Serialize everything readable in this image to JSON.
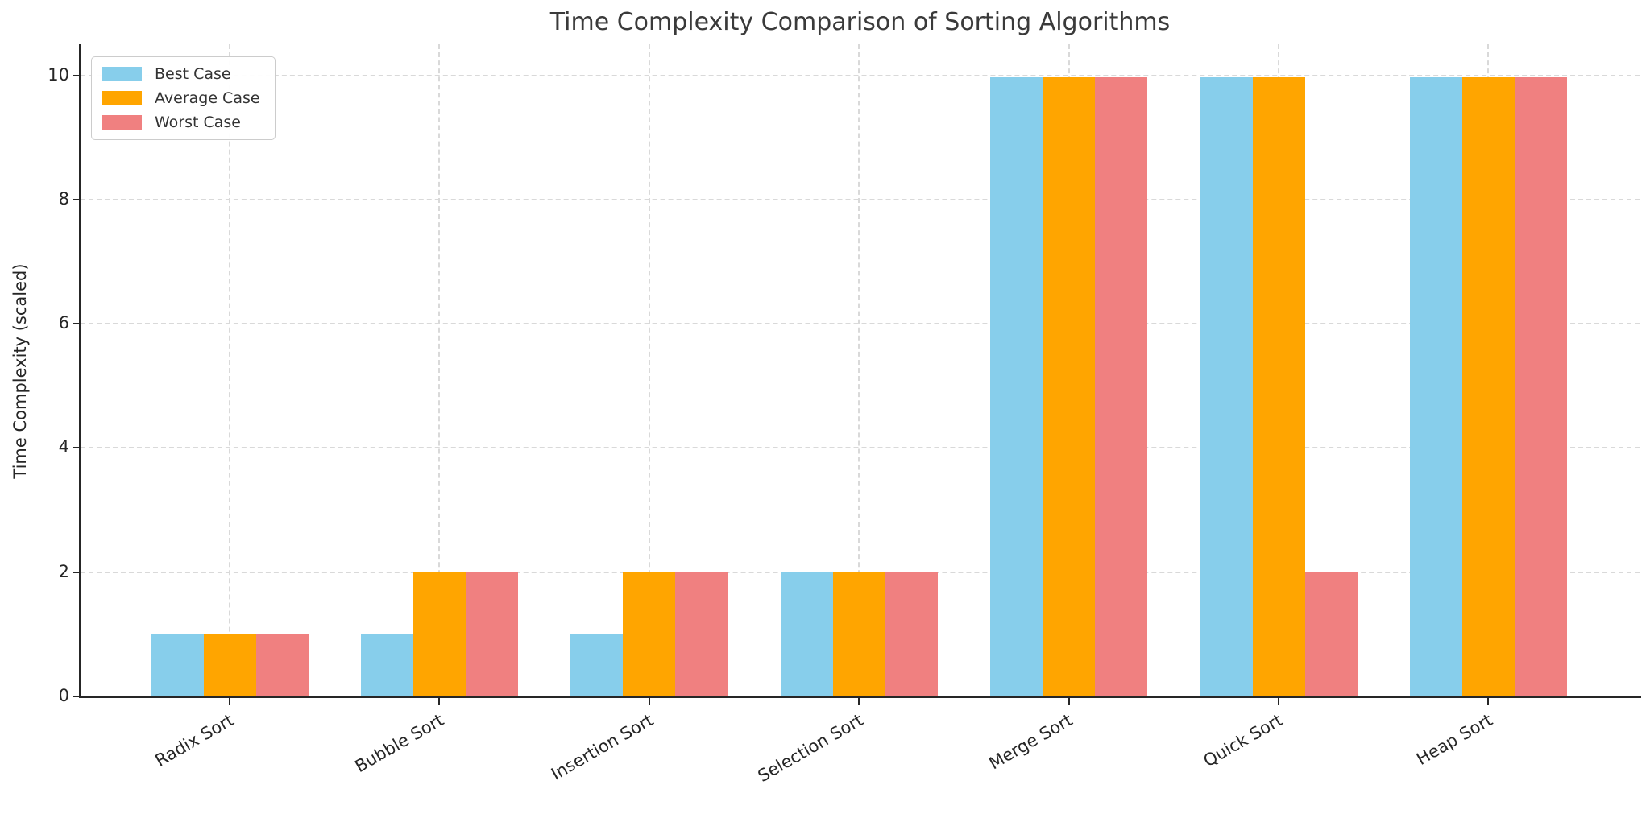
{
  "chart_data": {
    "type": "bar",
    "title": "Time Complexity Comparison of Sorting Algorithms",
    "xlabel": "",
    "ylabel": "Time Complexity (scaled)",
    "categories": [
      "Radix Sort",
      "Bubble Sort",
      "Insertion Sort",
      "Selection Sort",
      "Merge Sort",
      "Quick Sort",
      "Heap Sort"
    ],
    "series": [
      {
        "name": "Best Case",
        "color": "#87CEEB",
        "values": [
          1,
          1,
          1,
          2,
          9.97,
          9.97,
          9.97
        ]
      },
      {
        "name": "Average Case",
        "color": "#FFA500",
        "values": [
          1,
          2,
          2,
          2,
          9.97,
          9.97,
          9.97
        ]
      },
      {
        "name": "Worst Case",
        "color": "#F08080",
        "values": [
          1,
          2,
          2,
          2,
          9.97,
          2,
          9.97
        ]
      }
    ],
    "yticks": [
      0,
      2,
      4,
      6,
      8,
      10
    ],
    "ylim": [
      0,
      10.5
    ],
    "grid": "dashed-both-axes",
    "legend_position": "upper-left",
    "colors": {
      "grid": "#d9d9d9",
      "spine": "#262626",
      "title_text": "#3a3a3a",
      "tick_text": "#262626",
      "legend_border": "#cccccc"
    }
  }
}
